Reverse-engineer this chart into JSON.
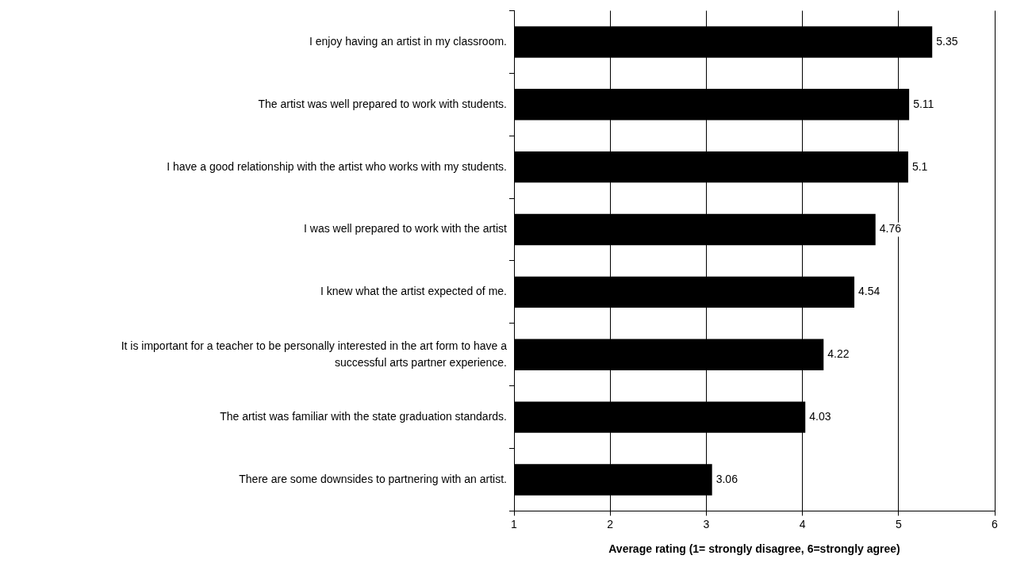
{
  "chart_data": {
    "type": "bar",
    "orientation": "horizontal",
    "categories": [
      "I enjoy having an artist in my classroom.",
      "The artist was well prepared to work with students.",
      "I have a good relationship with the artist who works with my students.",
      "I was well prepared to work with the artist",
      "I knew what the artist expected of me.",
      "It is important for a teacher to be personally interested in the art form to have a successful arts partner experience.",
      "The artist was familiar with the state graduation standards.",
      "There are some downsides to partnering with an artist."
    ],
    "values": [
      5.35,
      5.11,
      5.1,
      4.76,
      4.54,
      4.22,
      4.03,
      3.06
    ],
    "color": "#000000",
    "xlim": [
      1,
      6
    ],
    "xticks": [
      1,
      2,
      3,
      4,
      5,
      6
    ],
    "grid": "x",
    "data_labels": true,
    "legend": false,
    "xlabel": "Average rating (1= strongly disagree, 6=strongly agree)"
  }
}
